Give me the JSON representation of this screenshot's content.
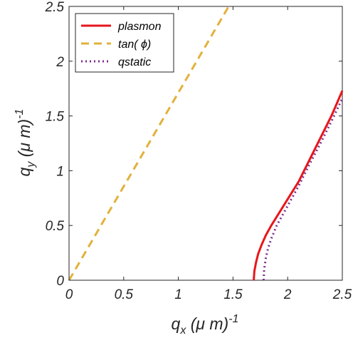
{
  "chart_data": {
    "type": "line",
    "title": "",
    "xlabel": {
      "base": "q",
      "sub": "x",
      "paren": " (μ m)",
      "sup": "-1"
    },
    "ylabel": {
      "base": "q",
      "sub": "y",
      "paren": " (μ m)",
      "sup": "-1"
    },
    "xlim": [
      0,
      2.5
    ],
    "ylim": [
      0,
      2.5
    ],
    "xticks": [
      "0",
      "0.5",
      "1",
      "1.5",
      "2",
      "2.5"
    ],
    "yticks": [
      "0",
      "0.5",
      "1",
      "1.5",
      "2",
      "2.5"
    ],
    "xtick_values": [
      0,
      0.5,
      1,
      1.5,
      2,
      2.5
    ],
    "ytick_values": [
      0,
      0.5,
      1,
      1.5,
      2,
      2.5
    ],
    "grid": false,
    "legend_position": "top-left",
    "series": [
      {
        "name": "plasmon",
        "color": "#e8161b",
        "style": "solid",
        "x": [
          1.69,
          1.695,
          1.71,
          1.73,
          1.76,
          1.8,
          1.85,
          1.9,
          2.0,
          2.1,
          2.2,
          2.3,
          2.4,
          2.5
        ],
        "y": [
          0,
          0.08,
          0.16,
          0.24,
          0.32,
          0.41,
          0.5,
          0.58,
          0.74,
          0.9,
          1.1,
          1.3,
          1.5,
          1.73
        ]
      },
      {
        "name": "tan( ϕ)",
        "color": "#e2b13c",
        "style": "dashed",
        "x": [
          0,
          1.46
        ],
        "y": [
          0,
          2.5
        ]
      },
      {
        "name": "qstatic",
        "color": "#7d2e8f",
        "style": "dotted",
        "x": [
          1.78,
          1.785,
          1.8,
          1.82,
          1.85,
          1.9,
          2.0,
          2.1,
          2.2,
          2.3,
          2.4,
          2.5
        ],
        "y": [
          0,
          0.1,
          0.2,
          0.29,
          0.38,
          0.5,
          0.68,
          0.86,
          1.06,
          1.25,
          1.45,
          1.66
        ]
      }
    ]
  }
}
